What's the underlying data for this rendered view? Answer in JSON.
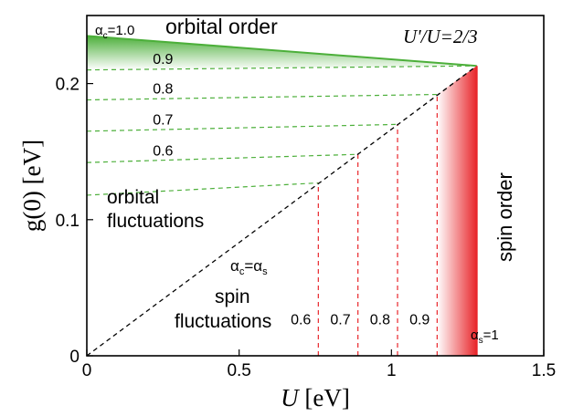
{
  "chart_data": {
    "type": "line",
    "x_axis": {
      "label_italic": "U",
      "label_rest": " [eV]",
      "lim": [
        0,
        1.5
      ],
      "ticks": [
        0,
        0.5,
        1,
        1.5
      ],
      "tick_labels": [
        "0",
        "0.5",
        "1",
        "1.5"
      ]
    },
    "y_axis": {
      "label": "g(0) [eV]",
      "lim": [
        0,
        0.25
      ],
      "ticks": [
        0,
        0.1,
        0.2
      ],
      "tick_labels": [
        "0",
        "0.1",
        "0.2"
      ]
    },
    "grid": false,
    "diagonal": {
      "x": [
        0,
        1.28
      ],
      "y": [
        0,
        0.213
      ],
      "label": "αc=αs",
      "color": "#000000"
    },
    "orbital_order_boundary": {
      "x": [
        0,
        1.28
      ],
      "y": [
        0.235,
        0.213
      ],
      "color": "#4caf3a"
    },
    "spin_order_boundary": {
      "x": [
        1.28,
        1.28
      ],
      "y": [
        0,
        0.213
      ],
      "color": "#e8262b"
    },
    "alpha_c_lines": [
      {
        "label": "0.9",
        "x": [
          0,
          1.28
        ],
        "y": [
          0.21,
          0.213
        ]
      },
      {
        "label": "0.8",
        "x": [
          0,
          1.15
        ],
        "y": [
          0.188,
          0.192
        ]
      },
      {
        "label": "0.7",
        "x": [
          0,
          1.02
        ],
        "y": [
          0.165,
          0.17
        ]
      },
      {
        "label": "0.6",
        "x": [
          0,
          0.89
        ],
        "y": [
          0.142,
          0.148
        ]
      },
      {
        "label": "",
        "x": [
          0,
          0.76
        ],
        "y": [
          0.118,
          0.127
        ]
      }
    ],
    "alpha_s_lines": [
      {
        "label": "0.6",
        "x": 0.76,
        "y_top": 0.127
      },
      {
        "label": "0.7",
        "x": 0.89,
        "y_top": 0.148
      },
      {
        "label": "0.8",
        "x": 1.02,
        "y_top": 0.17
      },
      {
        "label": "0.9",
        "x": 1.15,
        "y_top": 0.192
      }
    ],
    "annotations": {
      "alpha_c_top": "αc=1.0",
      "alpha_s_right": "αs=1",
      "orbital_order": "orbital order",
      "spin_order": "spin order",
      "ratio": "U'/U=2/3",
      "orbital_fluct_1": "orbital",
      "orbital_fluct_2": "fluctuations",
      "spin_fluct_1": "spin",
      "spin_fluct_2": "fluctuations"
    },
    "colors": {
      "orbital": "#4caf3a",
      "spin": "#e8262b",
      "diagonal": "#000000"
    }
  }
}
